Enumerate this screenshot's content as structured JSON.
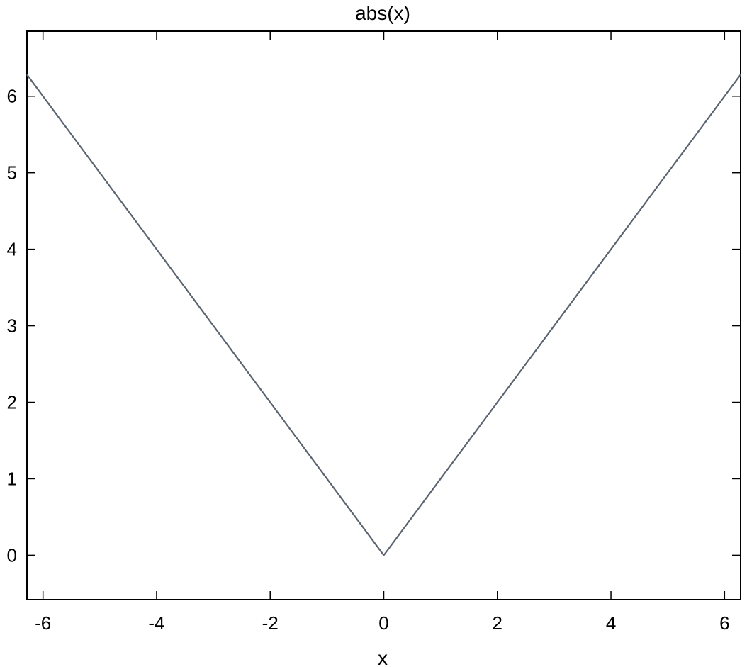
{
  "chart_data": {
    "type": "line",
    "title": "abs(x)",
    "xlabel": "x",
    "ylabel": "",
    "xlim": [
      -6.283,
      6.283
    ],
    "ylim": [
      -0.58,
      6.85
    ],
    "x_ticks": [
      -6,
      -4,
      -2,
      0,
      2,
      4,
      6
    ],
    "y_ticks": [
      0,
      1,
      2,
      3,
      4,
      5,
      6
    ],
    "grid": false,
    "legend": "none",
    "series": [
      {
        "color": "#5a6470",
        "x": [
          -6.283,
          0,
          6.283
        ],
        "y": [
          6.283,
          0,
          6.283
        ]
      }
    ]
  }
}
